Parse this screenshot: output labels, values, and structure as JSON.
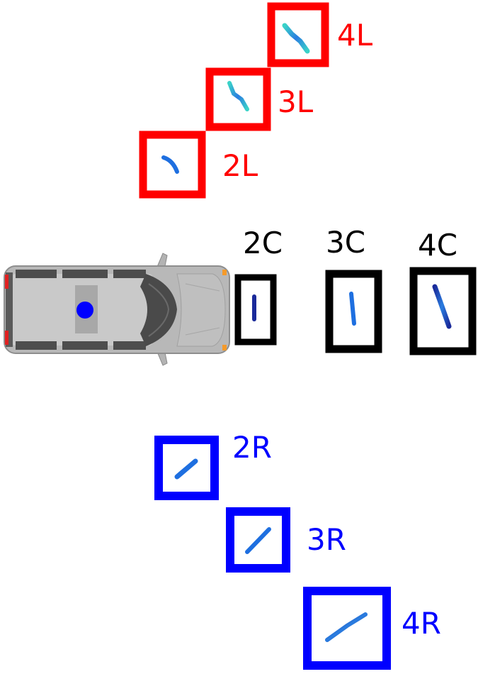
{
  "groups": [
    {
      "id": "left",
      "color": "#ff0000",
      "labels": [
        "2L",
        "3L",
        "4L"
      ]
    },
    {
      "id": "center",
      "color": "#000000",
      "labels": [
        "2C",
        "3C",
        "4C"
      ]
    },
    {
      "id": "right",
      "color": "#0000ff",
      "labels": [
        "2R",
        "3R",
        "4R"
      ]
    }
  ],
  "colors": {
    "vehicle_body": "#b3b3b3",
    "vehicle_roof": "#c8c8c8",
    "vehicle_dark": "#4d4d4d",
    "vehicle_marker": "#0000ff",
    "track_blue": "#1e6fe0",
    "track_dark": "#1a2a9a",
    "track_cyan": "#3ad3c8",
    "tail_light": "#e02020",
    "indicator": "#f59a2a"
  },
  "icons": {
    "vehicle": "van-top-view-icon"
  }
}
